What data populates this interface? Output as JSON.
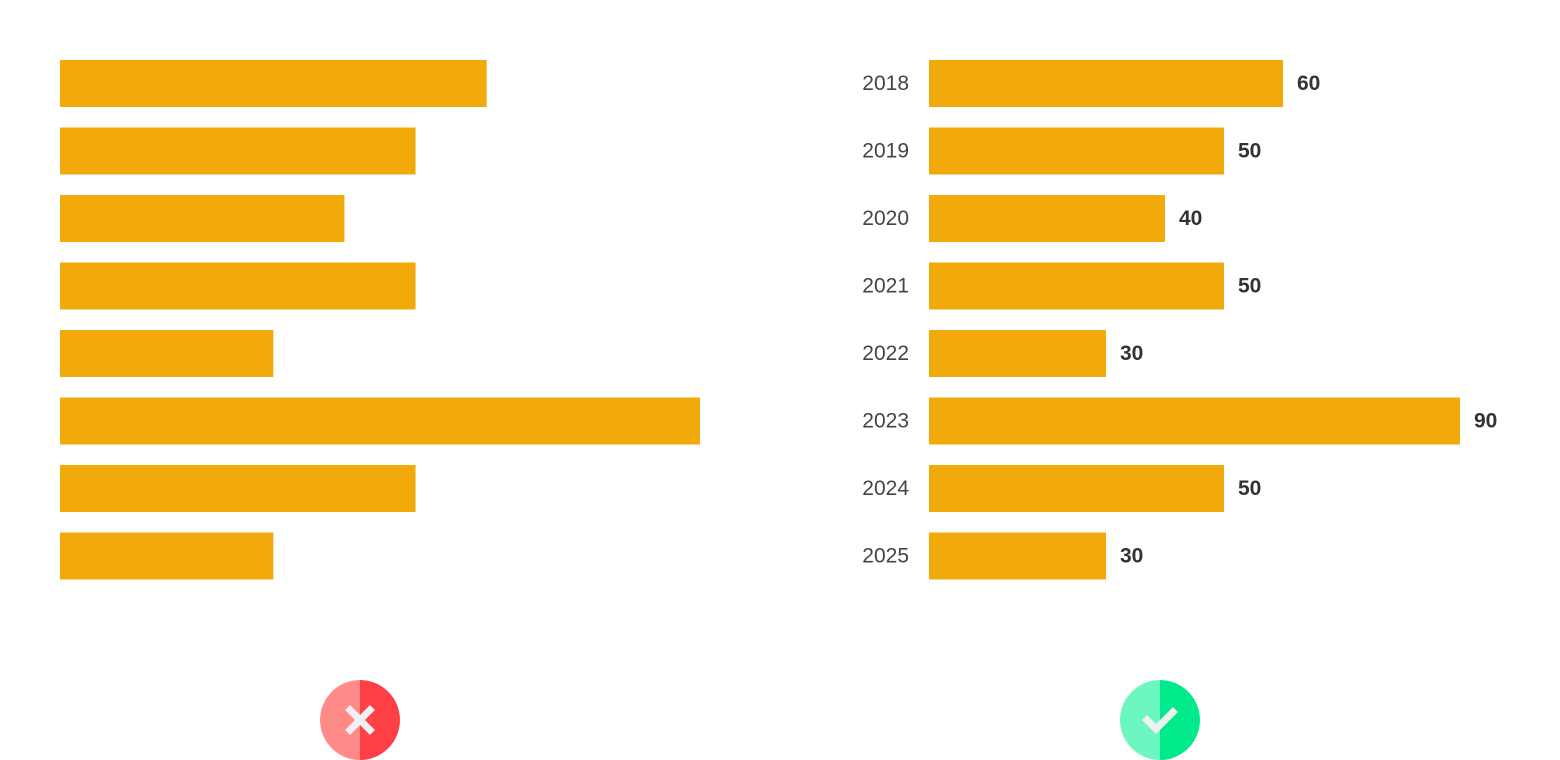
{
  "colors": {
    "bar": "#F2AA0B",
    "bad_light": "#FF8A87",
    "bad_dark": "#FF3F46",
    "good_light": "#6CF6C0",
    "good_dark": "#00EA8C",
    "icon_mark": "#F1F1F1"
  },
  "badges": {
    "bad": "cross-icon",
    "good": "check-icon"
  },
  "chart_data": [
    {
      "type": "bar",
      "orientation": "horizontal",
      "categories": [
        "",
        "",
        "",
        "",
        "",
        "",
        "",
        ""
      ],
      "values": [
        60,
        50,
        40,
        50,
        30,
        90,
        50,
        30
      ],
      "xlim": [
        0,
        90
      ],
      "grid": false,
      "show_category_labels": false,
      "show_value_labels": false
    },
    {
      "type": "bar",
      "orientation": "horizontal",
      "categories": [
        "2018",
        "2019",
        "2020",
        "2021",
        "2022",
        "2023",
        "2024",
        "2025"
      ],
      "values": [
        60,
        50,
        40,
        50,
        30,
        90,
        50,
        30
      ],
      "value_labels": [
        "60",
        "50",
        "40",
        "50",
        "30",
        "90",
        "50",
        "30"
      ],
      "xlim": [
        0,
        90
      ],
      "grid": false,
      "show_category_labels": true,
      "show_value_labels": true
    }
  ]
}
